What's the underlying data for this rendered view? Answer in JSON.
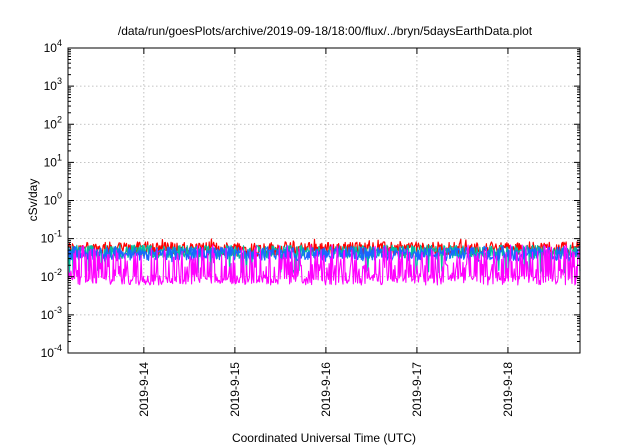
{
  "chart_data": {
    "type": "line",
    "title": "/data/run/goesPlots/archive/2019-09-18/18:00/flux/../bryn/5daysEarthData.plot",
    "xlabel": "Coordinated Universal Time (UTC)",
    "ylabel": "cSv/day",
    "y_scale": "log",
    "ylim": [
      0.0001,
      10000
    ],
    "y_ticks": [
      {
        "mantissa": "10",
        "exp": "-4",
        "value": 0.0001
      },
      {
        "mantissa": "10",
        "exp": "-3",
        "value": 0.001
      },
      {
        "mantissa": "10",
        "exp": "-2",
        "value": 0.01
      },
      {
        "mantissa": "10",
        "exp": "-1",
        "value": 0.1
      },
      {
        "mantissa": "10",
        "exp": "0",
        "value": 1
      },
      {
        "mantissa": "10",
        "exp": "1",
        "value": 10
      },
      {
        "mantissa": "10",
        "exp": "2",
        "value": 100
      },
      {
        "mantissa": "10",
        "exp": "3",
        "value": 1000
      },
      {
        "mantissa": "10",
        "exp": "4",
        "value": 10000
      }
    ],
    "xlim": [
      "2019-09-13T04:00",
      "2019-09-18T19:00"
    ],
    "x_ticks": [
      "2019-9-14",
      "2019-9-15",
      "2019-9-16",
      "2019-9-17",
      "2019-9-18"
    ],
    "grid": true,
    "series": [
      {
        "color": "#ff0000",
        "typical": 0.055,
        "low": 0.035,
        "high": 0.1,
        "dip_prob": 0.02
      },
      {
        "color": "#00c0a0",
        "typical": 0.045,
        "low": 0.012,
        "high": 0.07,
        "dip_prob": 0.06
      },
      {
        "color": "#1a66ff",
        "typical": 0.04,
        "low": 0.025,
        "high": 0.065,
        "dip_prob": 0.03
      },
      {
        "color": "#ff00ff",
        "typical": 0.008,
        "low": 0.005,
        "high": 0.07,
        "dip_prob": 0.0
      }
    ]
  }
}
